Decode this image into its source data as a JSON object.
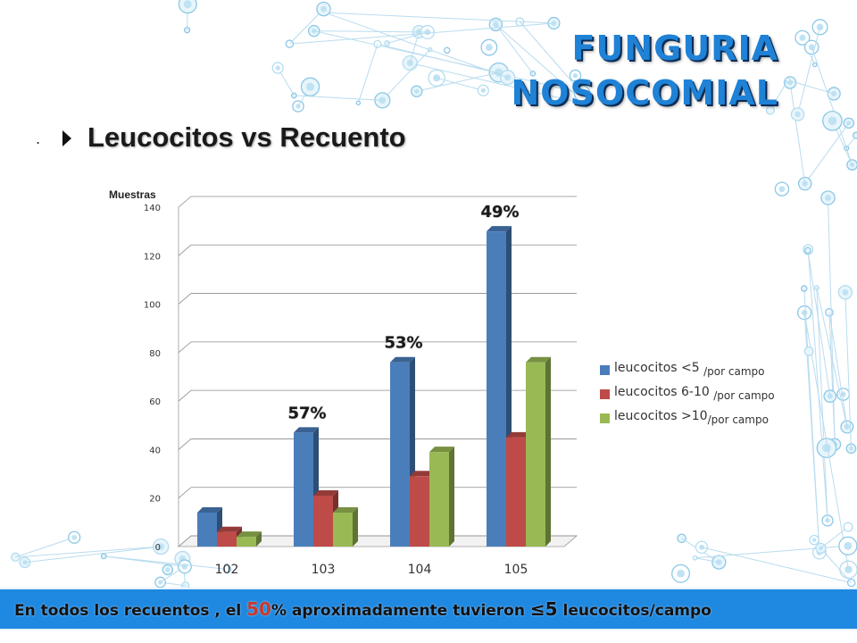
{
  "title": {
    "line1": "FUNGURIA",
    "line2": "NOSOCOMIAL"
  },
  "subtitle": {
    "bullet": ".",
    "text": "Leucocitos vs Recuento"
  },
  "legend_items": [
    {
      "main": "leucocitos <5",
      "sub": "/por campo"
    },
    {
      "main": "leucocitos 6-10",
      "sub": "/por campo"
    },
    {
      "main": "leucocitos >10",
      "sub": "/por campo"
    }
  ],
  "banner": {
    "prefix": "En todos los recuentos , el ",
    "highlight": "50",
    "middle": "% aproximadamente tuvieron  ",
    "symbol": "≤5",
    "suffix": " leucocitos/campo"
  },
  "colors": {
    "title": "#1f82d6",
    "series1": "#4a7ebb",
    "series2": "#be4b48",
    "series3": "#98b954",
    "banner": "#1f88e0"
  },
  "chart_data": {
    "type": "bar",
    "ylabel": "Muestras",
    "ylim": [
      0,
      140
    ],
    "yticks": [
      0,
      20,
      40,
      60,
      80,
      100,
      120,
      140
    ],
    "categories": [
      "102",
      "103",
      "104",
      "105"
    ],
    "series": [
      {
        "name": "leucocitos <5 /por campo",
        "values": [
          14,
          47,
          76,
          130
        ]
      },
      {
        "name": "leucocitos 6-10 /por campo",
        "values": [
          6,
          21,
          29,
          45
        ]
      },
      {
        "name": "leucocitos >10/por campo",
        "values": [
          4,
          14,
          39,
          76
        ]
      }
    ],
    "annotations": [
      {
        "category": "103",
        "text": "57%"
      },
      {
        "category": "104",
        "text": "53%"
      },
      {
        "category": "105",
        "text": "49%"
      }
    ],
    "grid": true,
    "legend": "right"
  }
}
